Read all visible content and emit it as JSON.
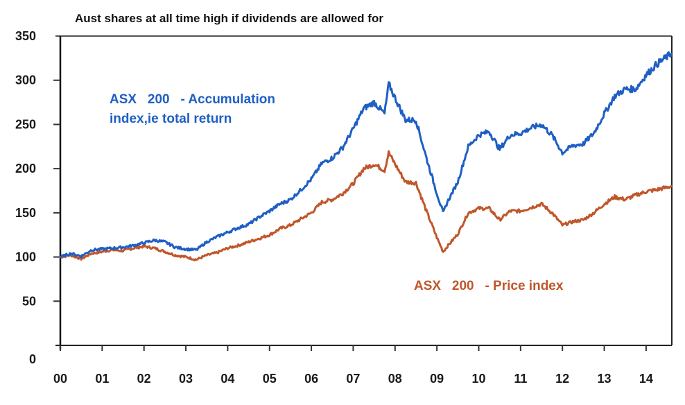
{
  "chart_data": {
    "type": "line",
    "title": "Aust shares at all time high if  dividends are allowed for",
    "xlabel": "",
    "ylabel": "",
    "xlim": [
      0,
      14.6
    ],
    "ylim": [
      0,
      350
    ],
    "grid": false,
    "legend": "none (inline annotations)",
    "x_tick_labels": [
      "00",
      "01",
      "02",
      "03",
      "04",
      "05",
      "06",
      "07",
      "08",
      "09",
      "10",
      "11",
      "12",
      "13",
      "14"
    ],
    "y_tick_labels": [
      "0",
      "50",
      "100",
      "150",
      "200",
      "250",
      "300",
      "350"
    ],
    "y_ticks": [
      0,
      50,
      100,
      150,
      200,
      250,
      300,
      350
    ],
    "annotations": [
      {
        "text": "ASX   200   - Accumulation",
        "series": "accumulation",
        "color": "#1f5fc4"
      },
      {
        "text": "index,ie total return",
        "series": "accumulation",
        "color": "#1f5fc4"
      },
      {
        "text": "ASX   200   - Price index",
        "series": "price",
        "color": "#c0562a"
      }
    ],
    "x": [
      0.0,
      0.25,
      0.5,
      0.75,
      1.0,
      1.25,
      1.5,
      1.75,
      2.0,
      2.25,
      2.5,
      2.75,
      3.0,
      3.25,
      3.5,
      3.75,
      4.0,
      4.25,
      4.5,
      4.75,
      5.0,
      5.25,
      5.5,
      5.75,
      6.0,
      6.25,
      6.5,
      6.75,
      7.0,
      7.25,
      7.5,
      7.75,
      7.85,
      8.0,
      8.25,
      8.5,
      8.75,
      9.0,
      9.15,
      9.25,
      9.5,
      9.75,
      10.0,
      10.25,
      10.5,
      10.75,
      11.0,
      11.25,
      11.5,
      11.75,
      12.0,
      12.25,
      12.5,
      12.75,
      13.0,
      13.25,
      13.5,
      13.75,
      14.0,
      14.25,
      14.6
    ],
    "series": [
      {
        "name": "ASX 200 - Accumulation index, ie total return",
        "color": "#1f5fc4",
        "values": [
          100,
          104,
          101,
          108,
          109,
          110,
          111,
          113,
          116,
          119,
          117,
          111,
          109,
          108,
          117,
          123,
          128,
          133,
          137,
          145,
          152,
          160,
          165,
          176,
          188,
          206,
          212,
          224,
          245,
          268,
          275,
          262,
          296,
          280,
          255,
          255,
          212,
          172,
          150,
          162,
          185,
          225,
          238,
          242,
          222,
          238,
          240,
          246,
          250,
          238,
          218,
          226,
          228,
          240,
          262,
          282,
          290,
          290,
          306,
          318,
          330
        ]
      },
      {
        "name": "ASX 200 - Price index",
        "color": "#c0562a",
        "values": [
          100,
          102,
          98,
          104,
          106,
          108,
          107,
          110,
          112,
          110,
          106,
          102,
          100,
          97,
          102,
          105,
          110,
          113,
          117,
          121,
          125,
          132,
          136,
          143,
          150,
          162,
          165,
          172,
          183,
          200,
          205,
          198,
          218,
          205,
          185,
          184,
          152,
          122,
          106,
          112,
          126,
          150,
          155,
          155,
          142,
          152,
          152,
          156,
          160,
          150,
          136,
          140,
          142,
          150,
          160,
          168,
          165,
          170,
          174,
          176,
          180
        ]
      }
    ]
  }
}
